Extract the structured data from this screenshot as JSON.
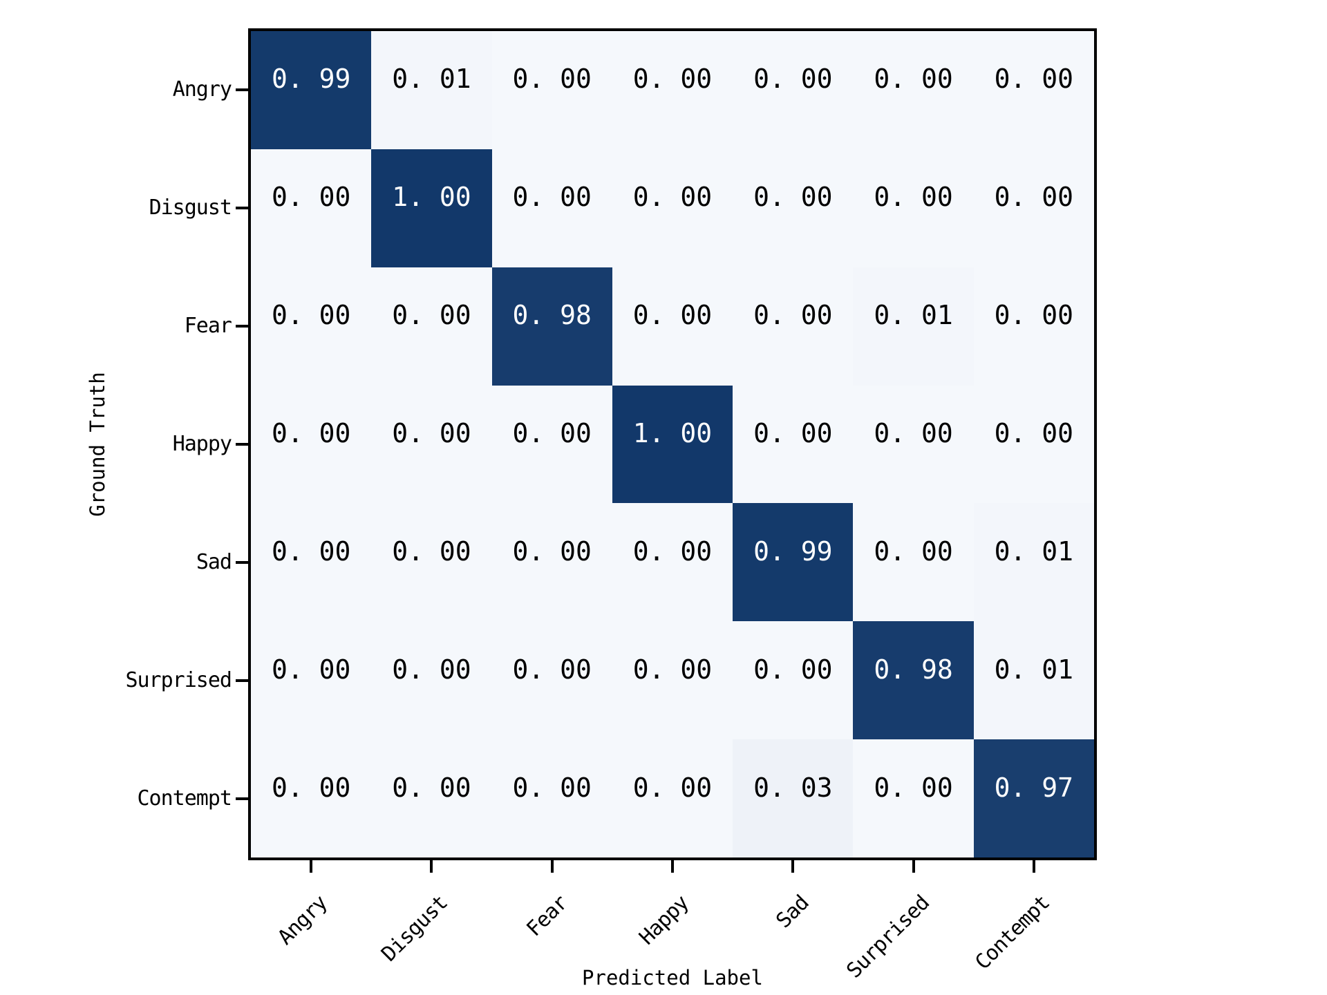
{
  "chart_data": {
    "type": "heatmap",
    "title": "",
    "xlabel": "Predicted Label",
    "ylabel": "Ground Truth",
    "x_categories": [
      "Angry",
      "Disgust",
      "Fear",
      "Happy",
      "Sad",
      "Surprised",
      "Contempt"
    ],
    "y_categories": [
      "Angry",
      "Disgust",
      "Fear",
      "Happy",
      "Sad",
      "Surprised",
      "Contempt"
    ],
    "matrix": [
      [
        0.99,
        0.01,
        0.0,
        0.0,
        0.0,
        0.0,
        0.0
      ],
      [
        0.0,
        1.0,
        0.0,
        0.0,
        0.0,
        0.0,
        0.0
      ],
      [
        0.0,
        0.0,
        0.98,
        0.0,
        0.0,
        0.01,
        0.0
      ],
      [
        0.0,
        0.0,
        0.0,
        1.0,
        0.0,
        0.0,
        0.0
      ],
      [
        0.0,
        0.0,
        0.0,
        0.0,
        0.99,
        0.0,
        0.01
      ],
      [
        0.0,
        0.0,
        0.0,
        0.0,
        0.0,
        0.98,
        0.01
      ],
      [
        0.0,
        0.0,
        0.0,
        0.0,
        0.03,
        0.0,
        0.97
      ]
    ],
    "value_decimals": 2,
    "value_range": [
      0,
      1
    ],
    "colormap": "Blues",
    "colors": {
      "cell_low": "#f5f8fc",
      "cell_high": "#12386a",
      "text_on_dark": "#ffffff",
      "text_on_light": "#000000",
      "axis": "#000000",
      "background": "#ffffff"
    },
    "legend": "none",
    "grid": false
  }
}
